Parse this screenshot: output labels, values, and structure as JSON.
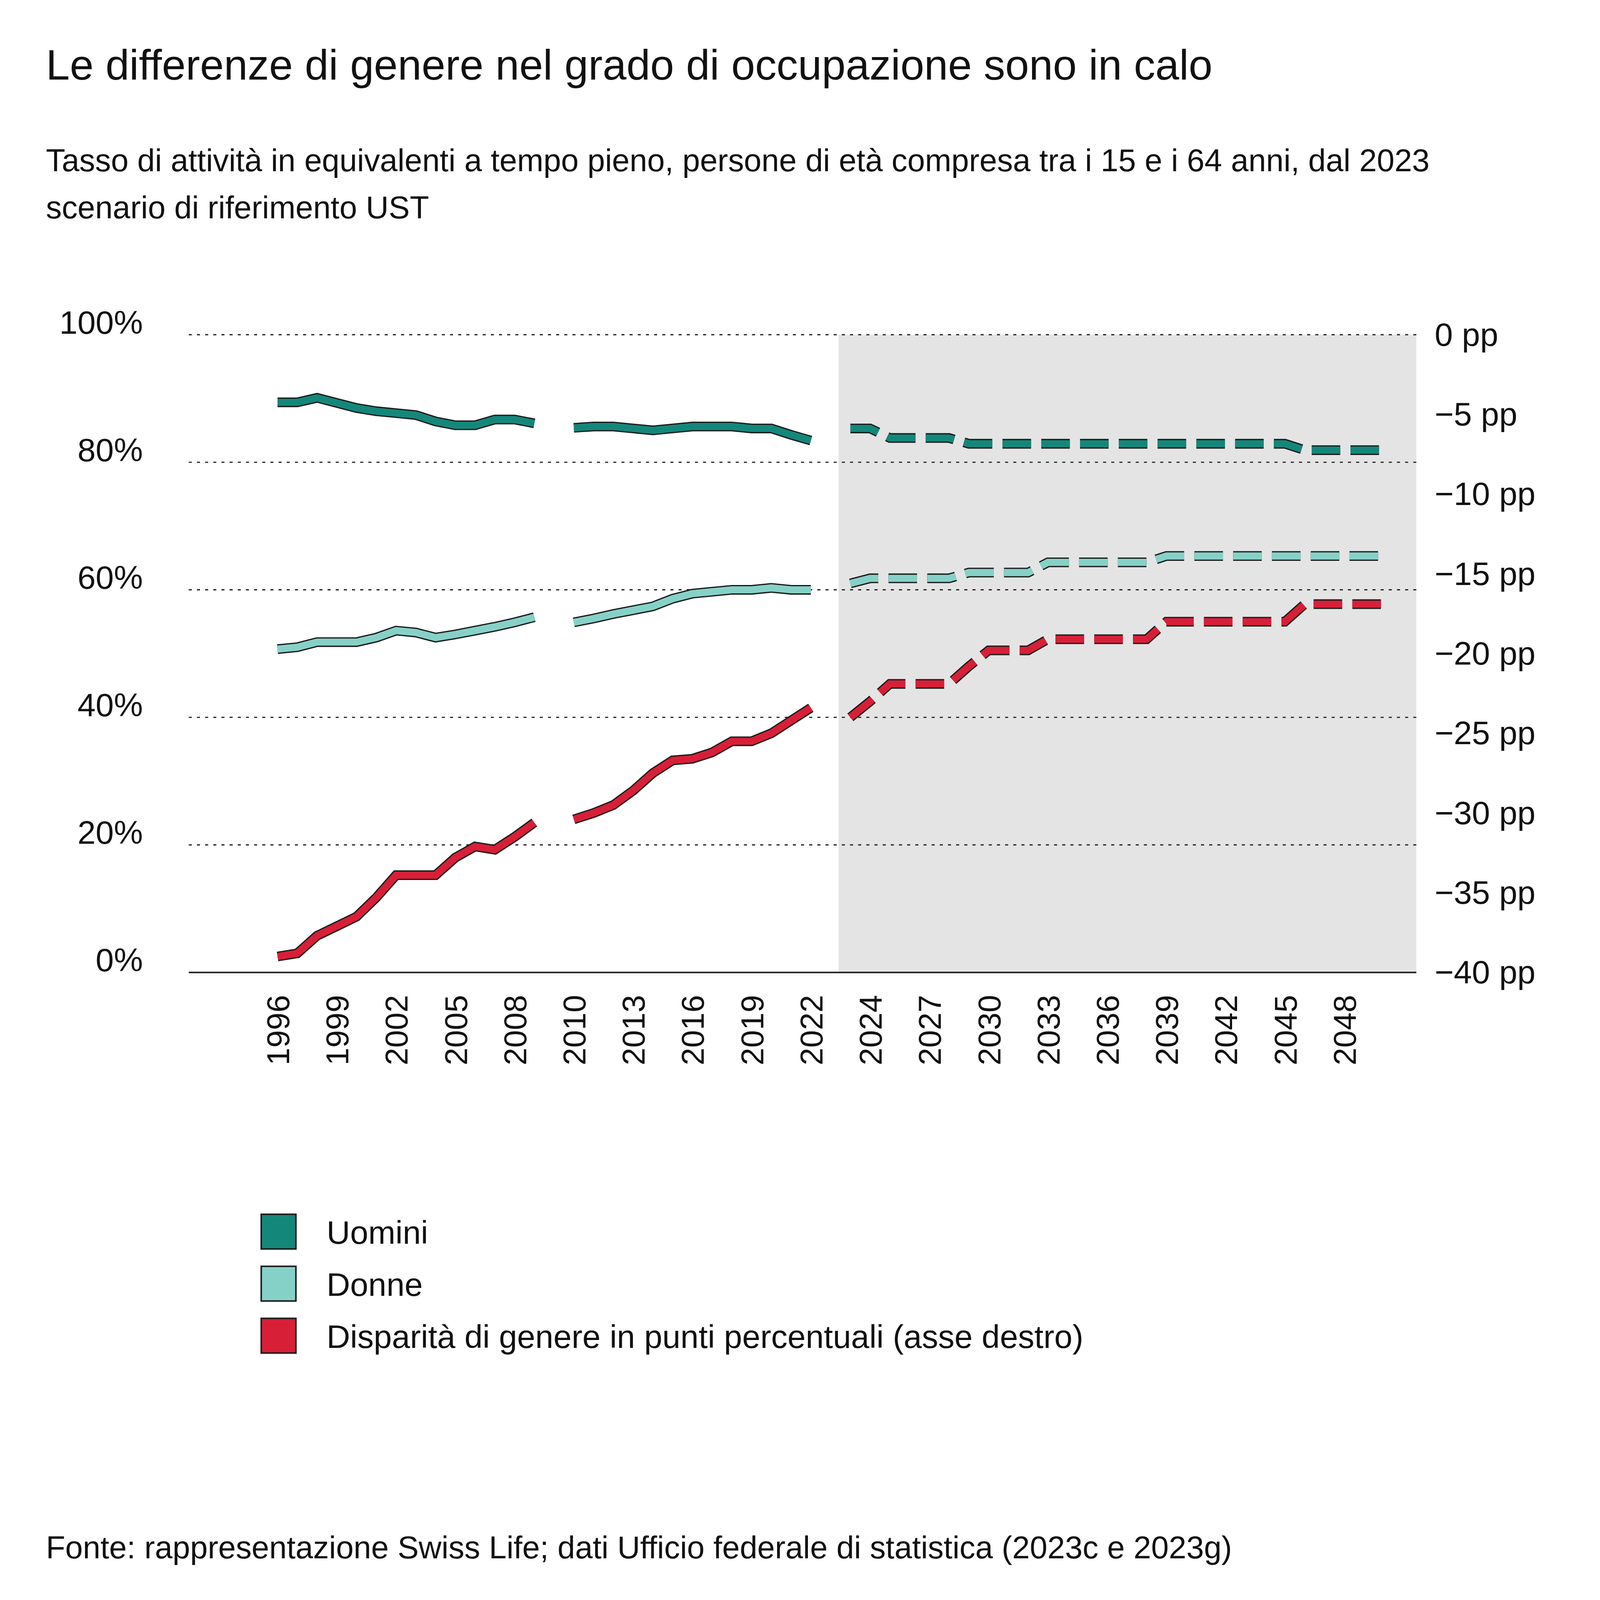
{
  "chart_data": {
    "type": "line",
    "title": "Le differenze di genere nel grado di occupazione sono in calo",
    "subtitle": "Tasso di attività in equivalenti a tempo pieno, persone di età compresa tra i 15 e i 64 anni, dal 2023 scenario di riferimento UST",
    "source": "Fonte: rappresentazione Swiss Life; dati Ufficio federale di statistica (2023c e 2023g)",
    "categories": [
      "1996",
      null,
      null,
      "1999",
      null,
      null,
      "2002",
      null,
      null,
      "2005",
      null,
      null,
      "2008",
      null,
      null,
      "2010",
      null,
      null,
      "2013",
      null,
      null,
      "2016",
      null,
      null,
      "2019",
      null,
      null,
      "2022",
      null,
      null,
      "2024",
      null,
      null,
      "2027",
      null,
      null,
      "2030",
      null,
      null,
      "2033",
      null,
      null,
      "2036",
      null,
      null,
      "2039",
      null,
      null,
      "2042",
      null,
      null,
      "2045",
      null,
      null,
      "2048",
      null,
      null
    ],
    "series": [
      {
        "name": "Uomini",
        "color": "#14877b",
        "line_style": "solid",
        "values": [
          89.4,
          89.4,
          90.1,
          89.3,
          88.5,
          88.0,
          87.7,
          87.4,
          86.4,
          85.8,
          85.8,
          86.7,
          86.7,
          86.1,
          null,
          85.4,
          85.6,
          85.6,
          85.3,
          85.0,
          85.3,
          85.6,
          85.6,
          85.6,
          85.3,
          85.3,
          84.3,
          83.4,
          null,
          null,
          null,
          null,
          null,
          null,
          null,
          null,
          null,
          null,
          null,
          null,
          null,
          null,
          null,
          null,
          null,
          null,
          null,
          null,
          null,
          null,
          null,
          null,
          null,
          null,
          null,
          null,
          null
        ]
      },
      {
        "name": "Uomini",
        "color": "#14877b",
        "line_style": "dashed",
        "values": [
          null,
          null,
          null,
          null,
          null,
          null,
          null,
          null,
          null,
          null,
          null,
          null,
          null,
          null,
          null,
          null,
          null,
          null,
          null,
          null,
          null,
          null,
          null,
          null,
          null,
          null,
          null,
          null,
          null,
          85.3,
          85.3,
          83.8,
          83.8,
          83.8,
          83.8,
          82.9,
          82.9,
          82.9,
          82.9,
          82.9,
          82.9,
          82.9,
          82.9,
          82.9,
          82.9,
          82.9,
          82.9,
          82.9,
          82.9,
          82.9,
          82.9,
          82.9,
          81.9,
          81.9,
          81.9,
          81.9,
          81.9
        ]
      },
      {
        "name": "Donne",
        "color": "#86d1c7",
        "line_style": "solid",
        "values": [
          50.7,
          51.0,
          51.8,
          51.8,
          51.8,
          52.5,
          53.6,
          53.3,
          52.5,
          53.0,
          53.6,
          54.2,
          54.9,
          55.7,
          null,
          54.9,
          55.5,
          56.2,
          56.8,
          57.4,
          58.6,
          59.4,
          59.7,
          60.0,
          60.0,
          60.3,
          60.0,
          60.0,
          null,
          null,
          null,
          null,
          null,
          null,
          null,
          null,
          null,
          null,
          null,
          null,
          null,
          null,
          null,
          null,
          null,
          null,
          null,
          null,
          null,
          null,
          null,
          null,
          null,
          null,
          null,
          null,
          null
        ]
      },
      {
        "name": "Donne",
        "color": "#86d1c7",
        "line_style": "dashed",
        "values": [
          null,
          null,
          null,
          null,
          null,
          null,
          null,
          null,
          null,
          null,
          null,
          null,
          null,
          null,
          null,
          null,
          null,
          null,
          null,
          null,
          null,
          null,
          null,
          null,
          null,
          null,
          null,
          null,
          null,
          61.0,
          61.8,
          61.8,
          61.8,
          61.8,
          61.8,
          62.7,
          62.7,
          62.7,
          62.7,
          64.3,
          64.3,
          64.3,
          64.3,
          64.3,
          64.3,
          65.3,
          65.3,
          65.3,
          65.3,
          65.3,
          65.3,
          65.3,
          65.3,
          65.3,
          65.3,
          65.3,
          65.3
        ]
      },
      {
        "name": "Disparità di genere in punti percentuali (asse destro)",
        "color": "#d81f38",
        "line_style": "solid",
        "axis": "y2",
        "values": [
          -39.0,
          -38.8,
          -37.7,
          -37.1,
          -36.5,
          -35.3,
          -33.9,
          -33.9,
          -33.9,
          -32.8,
          -32.1,
          -32.3,
          -31.5,
          -30.6,
          null,
          -30.4,
          -30.0,
          -29.5,
          -28.6,
          -27.5,
          -26.7,
          -26.6,
          -26.2,
          -25.5,
          -25.5,
          -25.0,
          -24.2,
          -23.4,
          null,
          null,
          null,
          null,
          null,
          null,
          null,
          null,
          null,
          null,
          null,
          null,
          null,
          null,
          null,
          null,
          null,
          null,
          null,
          null,
          null,
          null,
          null,
          null,
          null,
          null,
          null,
          null,
          null
        ]
      },
      {
        "name": "Disparità di genere in punti percentuali (asse destro)",
        "color": "#d81f38",
        "line_style": "dashed",
        "axis": "y2",
        "values": [
          null,
          null,
          null,
          null,
          null,
          null,
          null,
          null,
          null,
          null,
          null,
          null,
          null,
          null,
          null,
          null,
          null,
          null,
          null,
          null,
          null,
          null,
          null,
          null,
          null,
          null,
          null,
          null,
          null,
          -24.0,
          -23.0,
          -21.9,
          -21.9,
          -21.9,
          -21.9,
          -20.8,
          -19.8,
          -19.8,
          -19.8,
          -19.1,
          -19.1,
          -19.1,
          -19.1,
          -19.1,
          -19.1,
          -18.0,
          -18.0,
          -18.0,
          -18.0,
          -18.0,
          -18.0,
          -18.0,
          -16.9,
          -16.9,
          -16.9,
          -16.9,
          -16.9
        ]
      }
    ],
    "ylim": [
      0,
      100
    ],
    "yticks": [
      {
        "value": 0,
        "label": "0%"
      },
      {
        "value": 20,
        "label": "20%"
      },
      {
        "value": 40,
        "label": "40%"
      },
      {
        "value": 60,
        "label": "60%"
      },
      {
        "value": 80,
        "label": "80%"
      },
      {
        "value": 100,
        "label": "100%"
      }
    ],
    "y2lim": [
      -40,
      0
    ],
    "y2ticks": [
      {
        "value": -40,
        "label": "−40 pp"
      },
      {
        "value": -35,
        "label": "−35 pp"
      },
      {
        "value": -30,
        "label": "−30 pp"
      },
      {
        "value": -25,
        "label": "−25 pp"
      },
      {
        "value": -20,
        "label": "−20 pp"
      },
      {
        "value": -15,
        "label": "−15 pp"
      },
      {
        "value": -10,
        "label": "−10 pp"
      },
      {
        "value": -5,
        "label": "−5 pp"
      },
      {
        "value": 0,
        "label": "0 pp"
      }
    ],
    "grid": true,
    "legend": "bottom left"
  }
}
